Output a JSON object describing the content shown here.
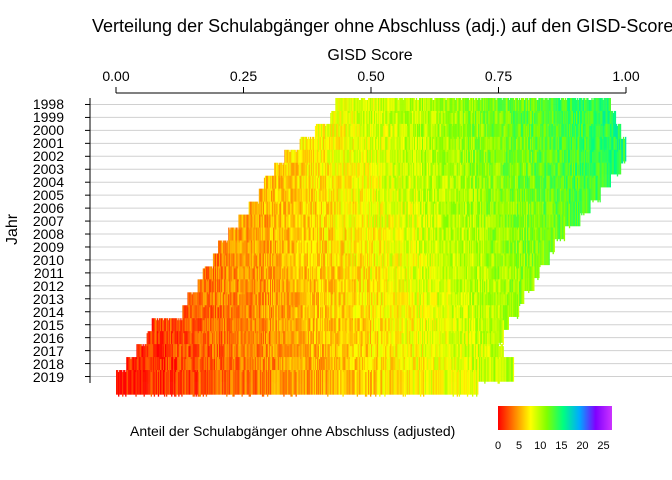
{
  "chart_data": {
    "type": "heatmap",
    "title": "Verteilung der Schulabgänger ohne Abschluss (adj.) auf den GISD-Score",
    "xlabel": "GISD Score",
    "ylabel": "Jahr",
    "x_axis_position": "top",
    "xlim": [
      0,
      1
    ],
    "x_ticks": [
      "0.00",
      "0.25",
      "0.50",
      "0.75",
      "1.00"
    ],
    "years": [
      "1998",
      "1999",
      "2000",
      "2001",
      "2002",
      "2003",
      "2004",
      "2005",
      "2006",
      "2007",
      "2008",
      "2009",
      "2010",
      "2011",
      "2012",
      "2013",
      "2014",
      "2015",
      "2016",
      "2017",
      "2018",
      "2019"
    ],
    "gisd_range_per_year": [
      {
        "year": "1998",
        "min": 0.43,
        "max": 0.97
      },
      {
        "year": "1999",
        "min": 0.42,
        "max": 0.98
      },
      {
        "year": "2000",
        "min": 0.39,
        "max": 0.99
      },
      {
        "year": "2001",
        "min": 0.36,
        "max": 1.0
      },
      {
        "year": "2002",
        "min": 0.33,
        "max": 0.99
      },
      {
        "year": "2003",
        "min": 0.31,
        "max": 0.97
      },
      {
        "year": "2004",
        "min": 0.29,
        "max": 0.95
      },
      {
        "year": "2005",
        "min": 0.28,
        "max": 0.93
      },
      {
        "year": "2006",
        "min": 0.26,
        "max": 0.91
      },
      {
        "year": "2007",
        "min": 0.24,
        "max": 0.88
      },
      {
        "year": "2008",
        "min": 0.22,
        "max": 0.86
      },
      {
        "year": "2009",
        "min": 0.2,
        "max": 0.85
      },
      {
        "year": "2010",
        "min": 0.19,
        "max": 0.83
      },
      {
        "year": "2011",
        "min": 0.17,
        "max": 0.82
      },
      {
        "year": "2012",
        "min": 0.16,
        "max": 0.8
      },
      {
        "year": "2013",
        "min": 0.14,
        "max": 0.79
      },
      {
        "year": "2014",
        "min": 0.13,
        "max": 0.77
      },
      {
        "year": "2015",
        "min": 0.07,
        "max": 0.76
      },
      {
        "year": "2016",
        "min": 0.06,
        "max": 0.75
      },
      {
        "year": "2017",
        "min": 0.04,
        "max": 0.76
      },
      {
        "year": "2018",
        "min": 0.02,
        "max": 0.78
      },
      {
        "year": "2019",
        "min": 0.0,
        "max": 0.71
      }
    ],
    "legend": {
      "title": "Anteil der Schulabgänger ohne Abschluss (adjusted)",
      "ticks": [
        "0",
        "5",
        "10",
        "15",
        "20",
        "25"
      ],
      "range": [
        0,
        27
      ],
      "colors": [
        "#ff0000",
        "#ff8000",
        "#ffff00",
        "#80ff00",
        "#00ff80",
        "#00aaff",
        "#8000ff",
        "#cc33ff"
      ]
    },
    "grid": true
  }
}
